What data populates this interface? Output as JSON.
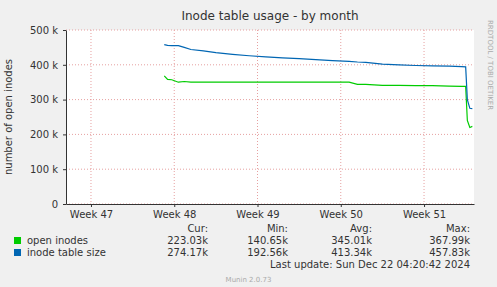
{
  "chart_data": {
    "type": "line",
    "title": "Inode table usage - by month",
    "y_label": "number of open inodes",
    "watermark": "RRDTOOL / TOBI OETIKER",
    "footer": "Last update: Sun Dec 22 04:20:42 2024",
    "credit": "Munin 2.0.73",
    "grid": true,
    "legend": "bottom",
    "xlim": [
      46.7,
      51.6
    ],
    "xticks": [
      {
        "value": 47,
        "label": "Week 47"
      },
      {
        "value": 48,
        "label": "Week 48"
      },
      {
        "value": 49,
        "label": "Week 49"
      },
      {
        "value": 50,
        "label": "Week 50"
      },
      {
        "value": 51,
        "label": "Week 51"
      }
    ],
    "ylim": [
      0,
      500000
    ],
    "yticks": [
      {
        "value": 0,
        "label": "0"
      },
      {
        "value": 100000,
        "label": "100 k"
      },
      {
        "value": 200000,
        "label": "200 k"
      },
      {
        "value": 300000,
        "label": "300 k"
      },
      {
        "value": 400000,
        "label": "400 k"
      },
      {
        "value": 500000,
        "label": "500 k"
      }
    ],
    "stats_headers": [
      "Cur:",
      "Min:",
      "Avg:",
      "Max:"
    ],
    "x": [
      47.88,
      47.92,
      47.97,
      48.05,
      48.12,
      48.2,
      48.35,
      48.5,
      48.7,
      48.9,
      49.1,
      49.3,
      49.5,
      49.7,
      49.9,
      50.1,
      50.2,
      50.3,
      50.5,
      50.7,
      50.9,
      51.1,
      51.3,
      51.45,
      51.5,
      51.52,
      51.55,
      51.58
    ],
    "series": [
      {
        "name": "open inodes",
        "color": "#00cc00",
        "values": [
          368000,
          358000,
          357000,
          350000,
          352000,
          350000,
          350000,
          350000,
          350000,
          350000,
          350000,
          350000,
          350000,
          350000,
          350000,
          350000,
          344000,
          344000,
          341000,
          341000,
          340000,
          340000,
          339000,
          338000,
          338000,
          240000,
          220000,
          223000
        ],
        "stats": [
          223030,
          140650,
          345010,
          367990
        ],
        "stats_text": [
          "223.03k",
          "140.65k",
          "345.01k",
          "367.99k"
        ]
      },
      {
        "name": "inode table size",
        "color": "#0066b3",
        "values": [
          458000,
          456000,
          455000,
          455000,
          450000,
          444000,
          440000,
          435000,
          430000,
          426000,
          423000,
          420000,
          418000,
          415000,
          412000,
          410000,
          408000,
          407000,
          402000,
          400000,
          398000,
          397000,
          396000,
          395000,
          394000,
          300000,
          275000,
          274000
        ],
        "stats": [
          274170,
          192560,
          413340,
          457830
        ],
        "stats_text": [
          "274.17k",
          "192.56k",
          "413.34k",
          "457.83k"
        ]
      }
    ]
  }
}
